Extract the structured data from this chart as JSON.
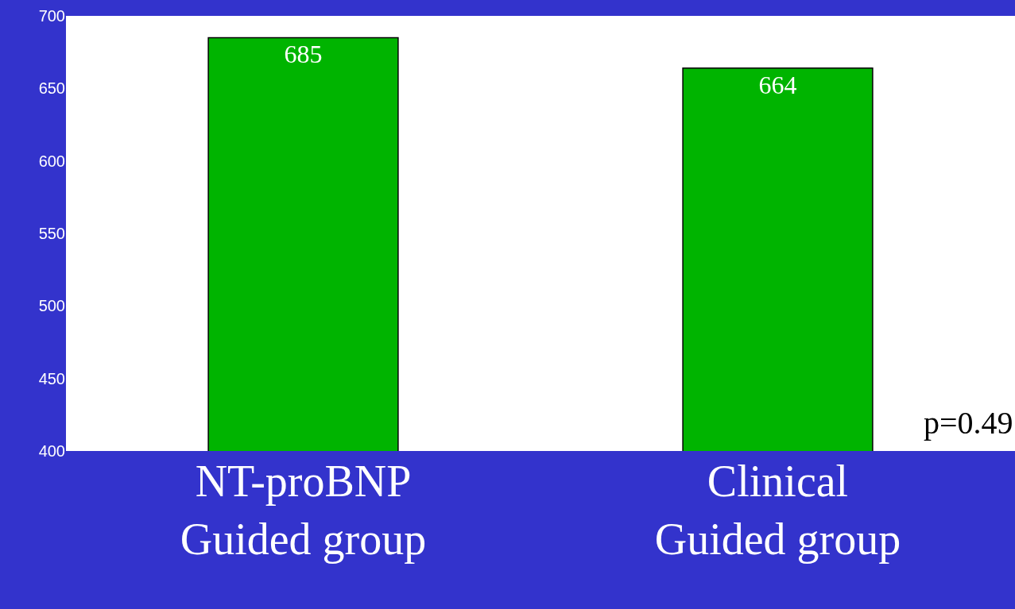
{
  "chart_data": {
    "type": "bar",
    "categories": [
      "NT-proBNP\nGuided group",
      "Clinical\nGuided group"
    ],
    "values": [
      685,
      664
    ],
    "color": "#00b400",
    "data_labels": true,
    "ylim": [
      400,
      700
    ],
    "yticks": [
      400,
      450,
      500,
      550,
      600,
      650,
      700
    ],
    "annotations": [
      "p=0.49"
    ]
  }
}
